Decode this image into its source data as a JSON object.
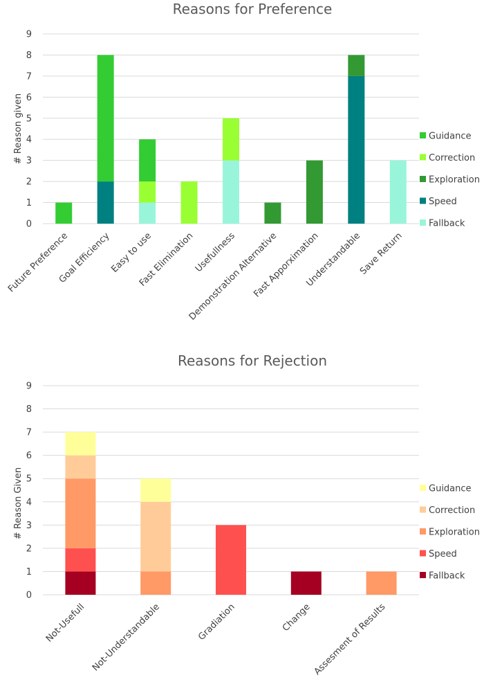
{
  "chart_data": [
    {
      "type": "bar",
      "stacked": true,
      "title": "Reasons for Preference",
      "xlabel": "",
      "ylabel": "# Reason given",
      "ylim": [
        0,
        9
      ],
      "yticks": [
        0,
        1,
        2,
        3,
        4,
        5,
        6,
        7,
        8,
        9
      ],
      "grid": true,
      "legend_position": "right",
      "categories": [
        "Future Preference",
        "Goal Efficiency",
        "Easy to use",
        "Fast Elimination",
        "Usefullness",
        "Demonstration Alternative",
        "Fast Apporximation",
        "Understandable",
        "Save Return"
      ],
      "series": [
        {
          "name": "Fallback",
          "color": "#99f5d9",
          "values": [
            0,
            0,
            1,
            0,
            3,
            0,
            0,
            0,
            3
          ]
        },
        {
          "name": "Speed",
          "color": "#008080",
          "values": [
            0,
            2,
            0,
            0,
            0,
            0,
            0,
            7,
            0
          ]
        },
        {
          "name": "Exploration",
          "color": "#339933",
          "values": [
            0,
            0,
            0,
            0,
            0,
            1,
            3,
            1,
            0
          ]
        },
        {
          "name": "Correction",
          "color": "#99ff33",
          "values": [
            0,
            0,
            1,
            2,
            2,
            0,
            0,
            0,
            0
          ]
        },
        {
          "name": "Guidance",
          "color": "#33cc33",
          "values": [
            1,
            6,
            2,
            0,
            0,
            0,
            0,
            0,
            0
          ]
        }
      ],
      "legend_order": [
        "Guidance",
        "Correction",
        "Exploration",
        "Speed",
        "Fallback"
      ]
    },
    {
      "type": "bar",
      "stacked": true,
      "title": "Reasons for Rejection",
      "xlabel": "",
      "ylabel": "# Reason Given",
      "ylim": [
        0,
        9
      ],
      "yticks": [
        0,
        1,
        2,
        3,
        4,
        5,
        6,
        7,
        8,
        9
      ],
      "grid": true,
      "legend_position": "right",
      "categories": [
        "Not-Usefull",
        "Not-Understandable",
        "Gradiation",
        "Change",
        "Assesment of Results"
      ],
      "series": [
        {
          "name": "Fallback",
          "color": "#a50021",
          "values": [
            1,
            0,
            0,
            1,
            0
          ]
        },
        {
          "name": "Speed",
          "color": "#ff5050",
          "values": [
            1,
            0,
            3,
            0,
            0
          ]
        },
        {
          "name": "Exploration",
          "color": "#ff9966",
          "values": [
            3,
            1,
            0,
            0,
            1
          ]
        },
        {
          "name": "Correction",
          "color": "#ffcc99",
          "values": [
            1,
            3,
            0,
            0,
            0
          ]
        },
        {
          "name": "Guidance",
          "color": "#ffff99",
          "values": [
            1,
            1,
            0,
            0,
            0
          ]
        }
      ],
      "legend_order": [
        "Guidance",
        "Correction",
        "Exploration",
        "Speed",
        "Fallback"
      ]
    }
  ]
}
